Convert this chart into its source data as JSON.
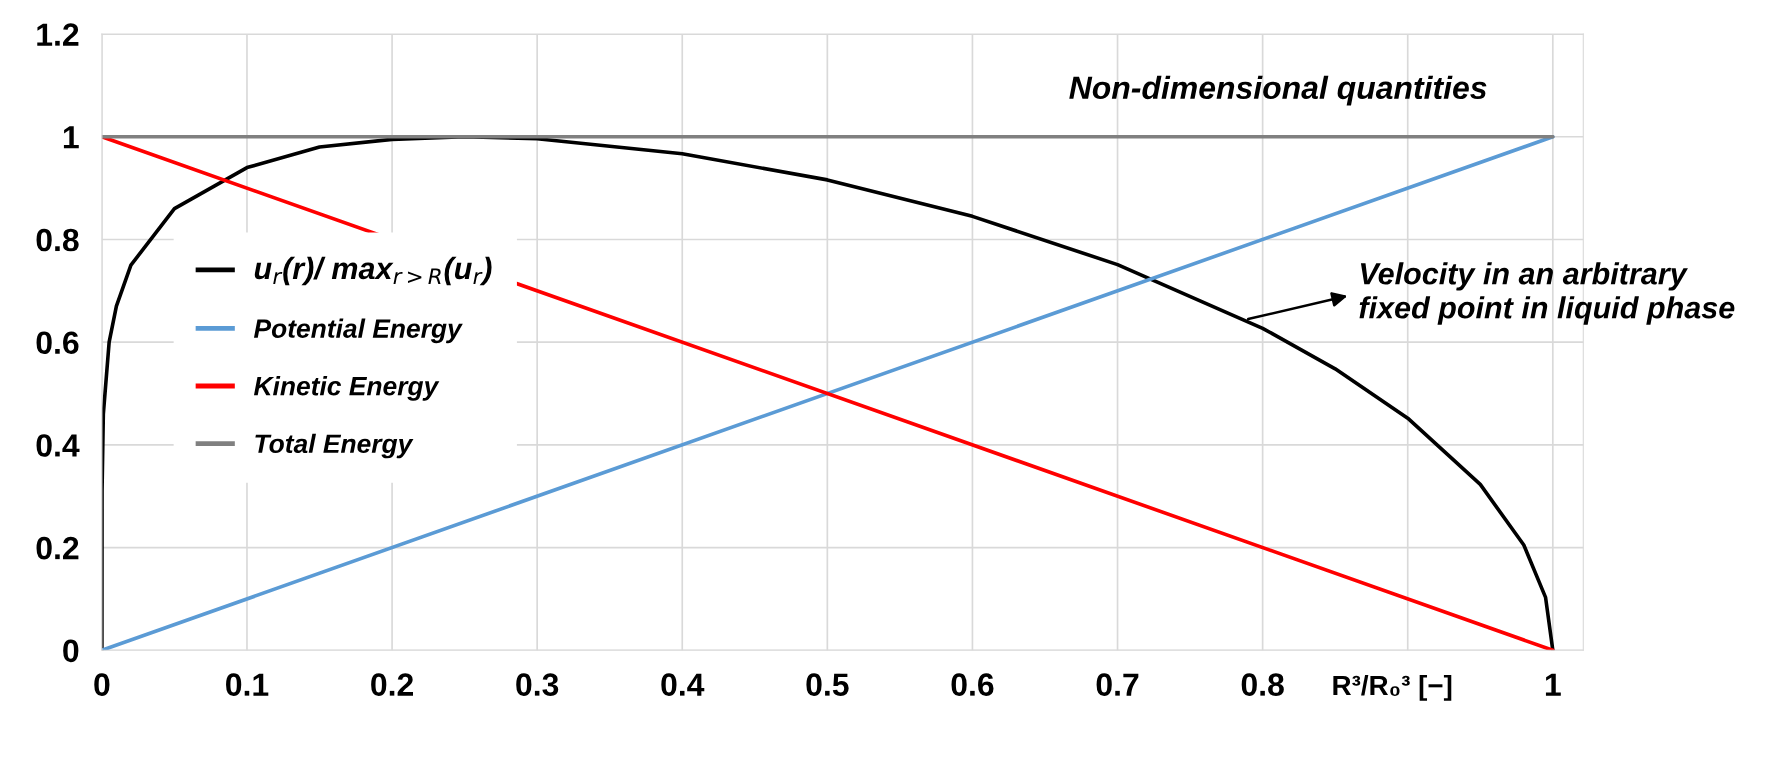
{
  "chart_data": {
    "type": "line",
    "title": "Non-dimensional quantities",
    "xlabel": "R³/R₀³ [−]",
    "xlim": [
      0,
      1.021
    ],
    "ylim": [
      0,
      1.2
    ],
    "xticks": [
      0,
      0.1,
      0.2,
      0.3,
      0.4,
      0.5,
      0.6,
      0.7,
      0.8,
      {
        "value": 0.9,
        "label": null
      },
      1
    ],
    "yticks": [
      0,
      0.2,
      0.4,
      0.6,
      0.8,
      1,
      1.2
    ],
    "grid": true,
    "legend": "center left",
    "line_style": "solid",
    "marker": "none",
    "annotations": [
      {
        "text": "Velocity in an arbitrary\nfixed point in liquid phase",
        "x": 0.79,
        "y": 0.645
      }
    ],
    "series": [
      {
        "name": "u$_{r}$(r)/ max$_{r>R}$(u$_{r}$)",
        "color": "#000000",
        "x": [
          0,
          0.0001,
          0.001,
          0.005,
          0.01,
          0.02,
          0.05,
          0.1,
          0.15,
          0.2,
          0.25,
          0.3,
          0.4,
          0.5,
          0.6,
          0.7,
          0.8,
          0.85,
          0.9,
          0.95,
          0.98,
          0.995,
          1
        ],
        "values": [
          0,
          0.31,
          0.46,
          0.6,
          0.67,
          0.75,
          0.86,
          0.94,
          0.98,
          0.995,
          1,
          0.996,
          0.967,
          0.916,
          0.845,
          0.751,
          0.627,
          0.548,
          0.452,
          0.323,
          0.205,
          0.103,
          0
        ]
      },
      {
        "name": "Potential Energy",
        "color": "#5b9bd5",
        "x": [
          0,
          1
        ],
        "values": [
          0,
          1
        ]
      },
      {
        "name": "Kinetic Energy",
        "color": "#ff0000",
        "x": [
          0,
          1
        ],
        "values": [
          1,
          0
        ]
      },
      {
        "name": "Total Energy",
        "color": "#808080",
        "x": [
          0,
          1
        ],
        "values": [
          1,
          1
        ]
      }
    ]
  }
}
